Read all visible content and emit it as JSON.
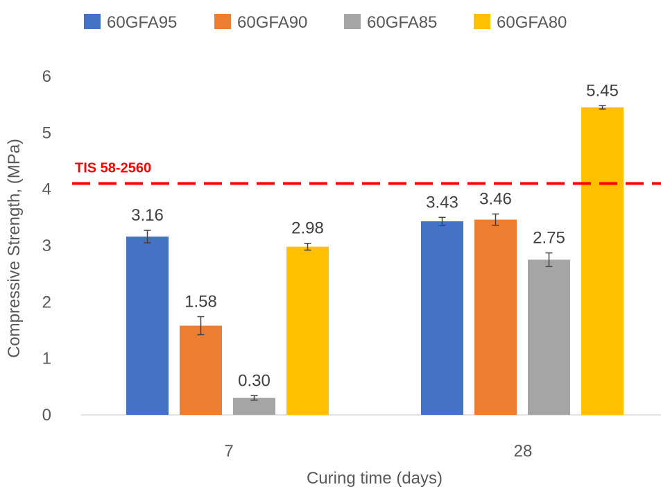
{
  "chart_data": {
    "type": "bar",
    "title": "",
    "xlabel": "Curing time (days)",
    "ylabel": "Compressive Strength, (MPa)",
    "categories": [
      "7",
      "28"
    ],
    "series": [
      {
        "name": "60GFA95",
        "color": "#4472C4",
        "values": [
          3.16,
          3.43
        ],
        "labels": [
          "3.16",
          "3.43"
        ],
        "error": [
          0.11,
          0.07
        ]
      },
      {
        "name": "60GFA90",
        "color": "#ED7D31",
        "values": [
          1.58,
          3.46
        ],
        "labels": [
          "1.58",
          "3.46"
        ],
        "error": [
          0.16,
          0.1
        ]
      },
      {
        "name": "60GFA85",
        "color": "#A5A5A5",
        "values": [
          0.3,
          2.75
        ],
        "labels": [
          "0.30",
          "2.75"
        ],
        "error": [
          0.04,
          0.12
        ]
      },
      {
        "name": "60GFA80",
        "color": "#FFC000",
        "values": [
          2.98,
          5.45
        ],
        "labels": [
          "2.98",
          "5.45"
        ],
        "error": [
          0.06,
          0.03
        ]
      }
    ],
    "ylim": [
      0,
      6
    ],
    "yticks": [
      "0",
      "1",
      "2",
      "3",
      "4",
      "5",
      "6"
    ],
    "grid": false,
    "legend_position": "top",
    "reference_line": {
      "label": "TIS 58-2560",
      "value": 4.1,
      "color": "#FF0000",
      "style": "dashed"
    }
  }
}
